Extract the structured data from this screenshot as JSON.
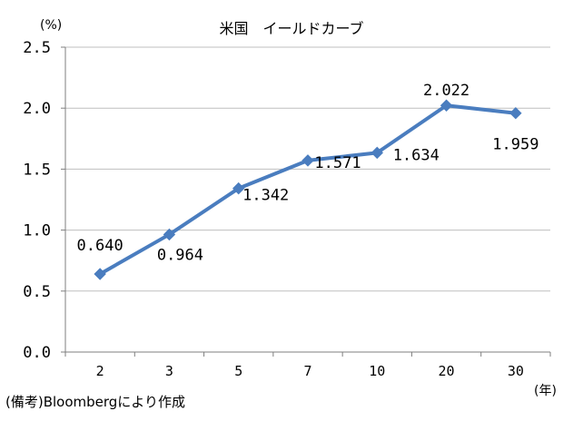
{
  "chart_data": {
    "type": "line",
    "title": "米国　イールドカーブ",
    "y_unit": "(%)",
    "x_unit": "(年)",
    "source": "(備考)Bloombergにより作成",
    "categories": [
      "2",
      "3",
      "5",
      "7",
      "10",
      "20",
      "30"
    ],
    "values": [
      0.64,
      0.964,
      1.342,
      1.571,
      1.634,
      2.022,
      1.959
    ],
    "data_labels": [
      "0.640",
      "0.964",
      "1.342",
      "1.571",
      "1.634",
      "2.022",
      "1.959"
    ],
    "ylim": [
      0.0,
      2.5
    ],
    "yticks": [
      "0.0",
      "0.5",
      "1.0",
      "1.5",
      "2.0",
      "2.5"
    ],
    "grid": true,
    "series_color": "#4a7dbf",
    "grid_color": "#bfbfbf"
  }
}
